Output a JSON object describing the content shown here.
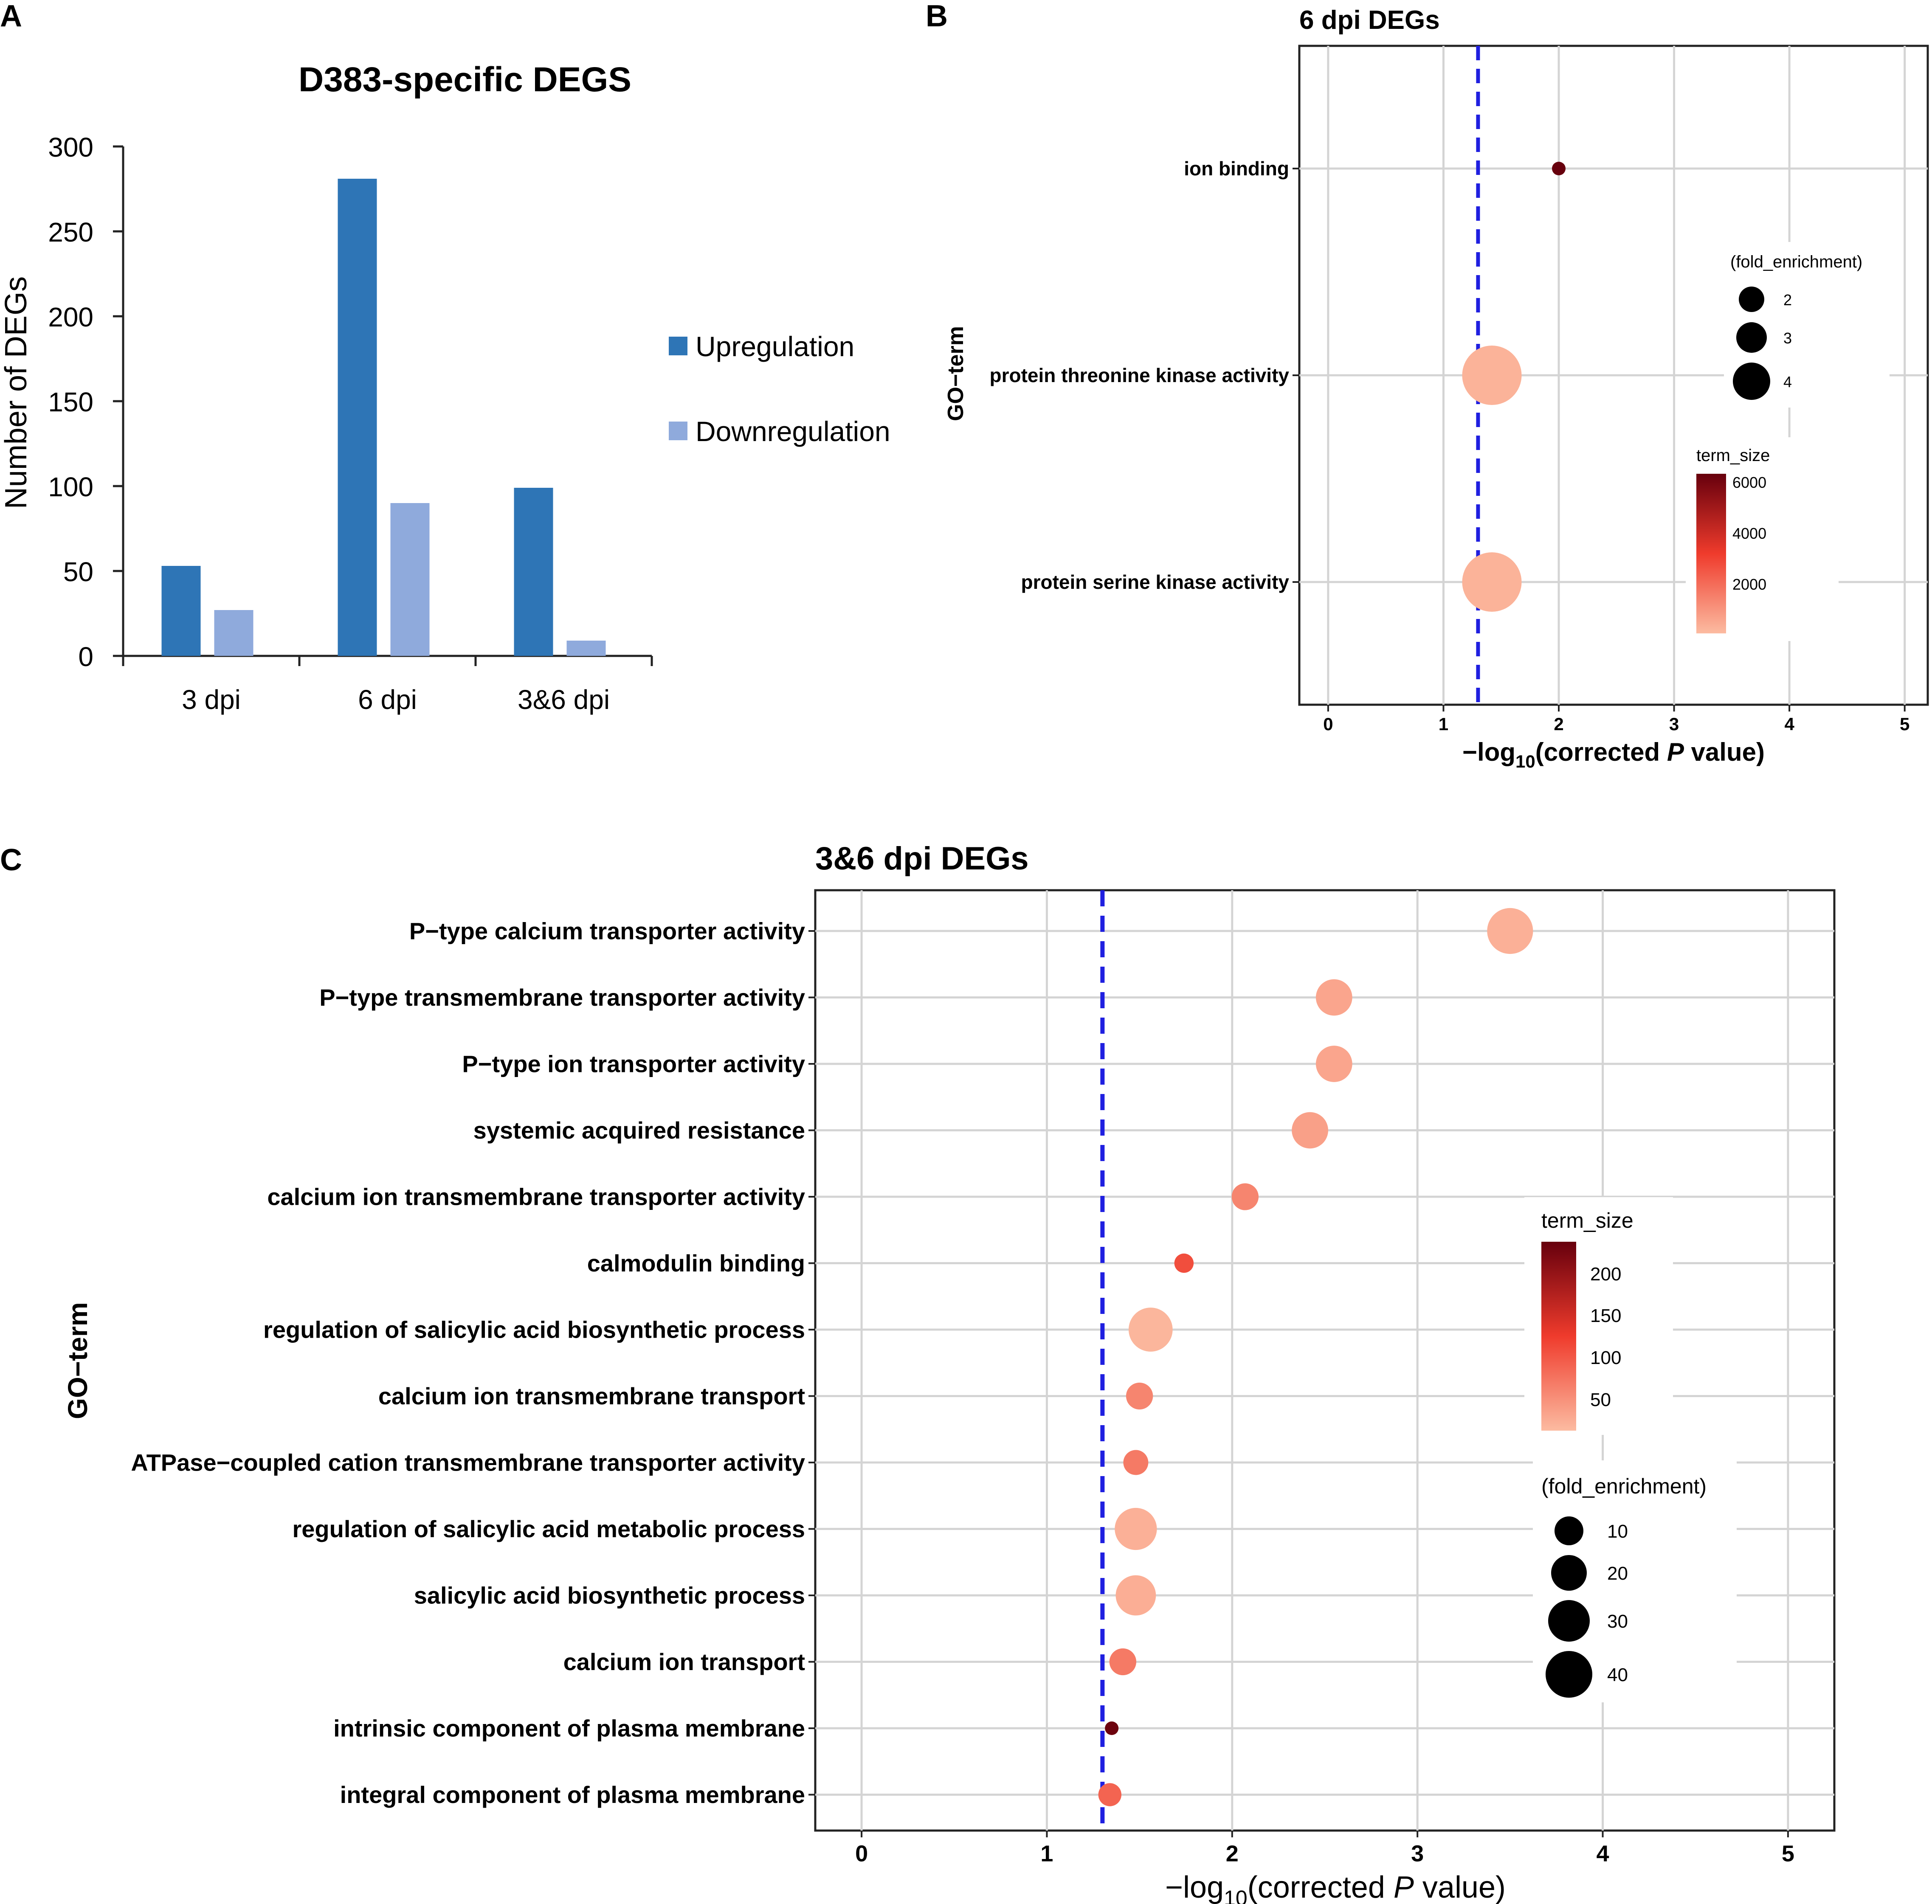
{
  "panels": {
    "A": {
      "letter": "A",
      "chart_data": {
        "type": "bar",
        "title": "D383-specific DEGS",
        "ylabel": "Number of DEGs",
        "xlabel": "",
        "ylim": [
          0,
          300
        ],
        "yticks": [
          0,
          50,
          100,
          150,
          200,
          250,
          300
        ],
        "categories": [
          "3 dpi",
          "6 dpi",
          "3&6 dpi"
        ],
        "series": [
          {
            "name": "Upregulation",
            "values": [
              53,
              281,
              99
            ],
            "color": "#2e75b6"
          },
          {
            "name": "Downregulation",
            "values": [
              27,
              90,
              9
            ],
            "color": "#8faadc"
          }
        ],
        "legend_position": "right"
      }
    },
    "B": {
      "letter": "B",
      "chart_data": {
        "type": "scatter",
        "title": "6 dpi DEGs",
        "xlabel": {
          "pre": "−log",
          "sub": "10",
          "mid": "(corrected ",
          "italic": "P",
          "post": " value)"
        },
        "ylabel": "GO−term",
        "xlim": [
          -0.25,
          5.2
        ],
        "xticks": [
          "0",
          "1",
          "2",
          "3",
          "4",
          "5"
        ],
        "threshold": 1.3,
        "terms": [
          {
            "label": "ion binding",
            "x": 2.0,
            "fold_enrichment": 1.3,
            "term_size": 6300
          },
          {
            "label": "protein threonine kinase activity",
            "x": 1.42,
            "fold_enrichment": 4.0,
            "term_size": 400
          },
          {
            "label": "protein serine kinase activity",
            "x": 1.42,
            "fold_enrichment": 4.0,
            "term_size": 400
          }
        ],
        "size_legend": {
          "title": "(fold_enrichment)",
          "values": [
            "2",
            "3",
            "4"
          ]
        },
        "color_legend": {
          "title": "term_size",
          "ticks": [
            "6000",
            "4000",
            "2000"
          ],
          "range": [
            200,
            6300
          ]
        }
      }
    },
    "C": {
      "letter": "C",
      "chart_data": {
        "type": "scatter",
        "title": "3&6 dpi DEGs",
        "xlabel": {
          "pre": "−log",
          "sub": "10",
          "mid": "(corrected ",
          "italic": "P",
          "post": " value)"
        },
        "ylabel": "GO−term",
        "xlim": [
          -0.25,
          5.25
        ],
        "xticks": [
          "0",
          "1",
          "2",
          "3",
          "4",
          "5"
        ],
        "threshold": 1.3,
        "terms": [
          {
            "label": "P−type calcium transporter activity",
            "x": 3.5,
            "fold_enrichment": 42,
            "term_size": 20
          },
          {
            "label": "P−type transmembrane transporter activity",
            "x": 2.55,
            "fold_enrichment": 32,
            "term_size": 30
          },
          {
            "label": "P−type ion transporter activity",
            "x": 2.55,
            "fold_enrichment": 32,
            "term_size": 30
          },
          {
            "label": "systemic acquired resistance",
            "x": 2.42,
            "fold_enrichment": 32,
            "term_size": 35
          },
          {
            "label": "calcium ion transmembrane transporter activity",
            "x": 2.07,
            "fold_enrichment": 22,
            "term_size": 60
          },
          {
            "label": "calmodulin binding",
            "x": 1.74,
            "fold_enrichment": 14,
            "term_size": 110
          },
          {
            "label": "regulation of salicylic acid biosynthetic process",
            "x": 1.56,
            "fold_enrichment": 40,
            "term_size": 15
          },
          {
            "label": "calcium ion transmembrane transport",
            "x": 1.5,
            "fold_enrichment": 22,
            "term_size": 60
          },
          {
            "label": "ATPase−coupled cation transmembrane transporter activity",
            "x": 1.48,
            "fold_enrichment": 20,
            "term_size": 70
          },
          {
            "label": "regulation of salicylic acid metabolic process",
            "x": 1.48,
            "fold_enrichment": 38,
            "term_size": 20
          },
          {
            "label": "salicylic acid biosynthetic process",
            "x": 1.48,
            "fold_enrichment": 36,
            "term_size": 22
          },
          {
            "label": "calcium ion transport",
            "x": 1.41,
            "fold_enrichment": 22,
            "term_size": 70
          },
          {
            "label": "intrinsic component of plasma membrane",
            "x": 1.35,
            "fold_enrichment": 8,
            "term_size": 240
          },
          {
            "label": "integral component of plasma membrane",
            "x": 1.34,
            "fold_enrichment": 18,
            "term_size": 90
          }
        ],
        "size_legend": {
          "title": "(fold_enrichment)",
          "values": [
            "10",
            "20",
            "30",
            "40"
          ]
        },
        "color_legend": {
          "title": "term_size",
          "ticks": [
            "200",
            "150",
            "100",
            "50"
          ],
          "range": [
            10,
            245
          ]
        }
      }
    }
  }
}
